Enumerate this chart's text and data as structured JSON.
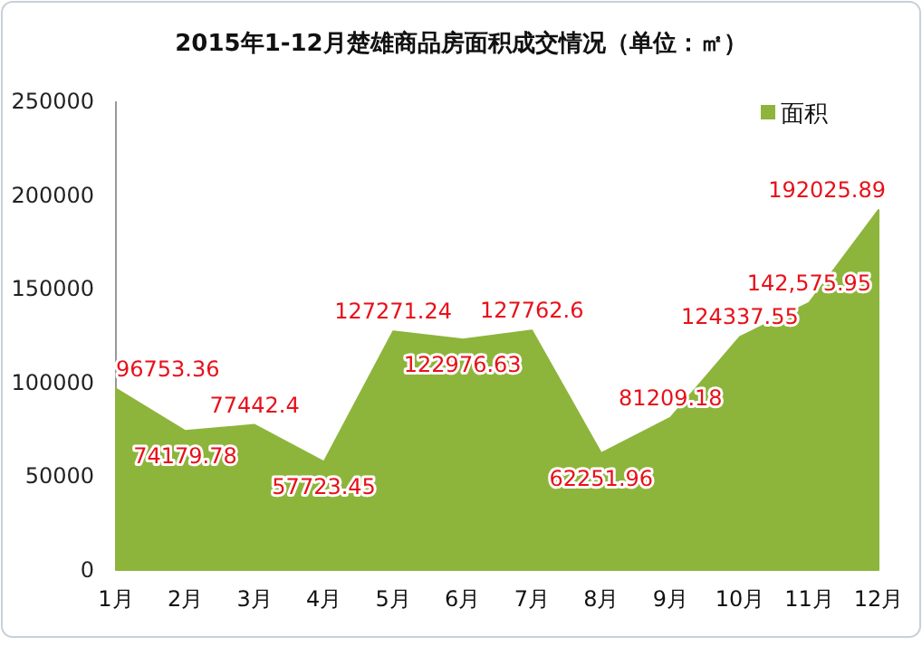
{
  "chart_data": {
    "type": "area",
    "title": "2015年1-12月楚雄商品房面积成交情况（单位：㎡）",
    "categories": [
      "1月",
      "2月",
      "3月",
      "4月",
      "5月",
      "6月",
      "7月",
      "8月",
      "9月",
      "10月",
      "11月",
      "12月"
    ],
    "series": [
      {
        "name": "面积",
        "color": "#8db53c",
        "values": [
          96753.36,
          74179.78,
          77442.4,
          57723.45,
          127271.24,
          122976.63,
          127762.6,
          62251.96,
          81209.18,
          124337.55,
          142575.95,
          192025.89
        ],
        "value_labels": [
          "96753.36",
          "74179.78",
          "77442.4",
          "57723.45",
          "127271.24",
          "122976.63",
          "127762.6",
          "62251.96",
          "81209.18",
          "124337.55",
          "142,575.95",
          "192025.89"
        ]
      }
    ],
    "ylim": [
      0,
      250000
    ],
    "yticks": [
      0,
      50000,
      100000,
      150000,
      200000,
      250000
    ],
    "grid": false,
    "legend": "top right"
  }
}
